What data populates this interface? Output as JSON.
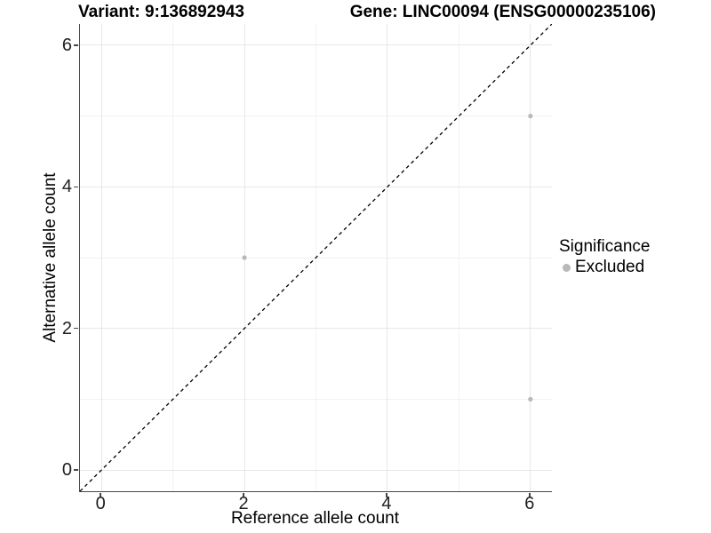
{
  "titles": {
    "left": "Variant: 9:136892943",
    "right": "Gene: LINC00094 (ENSG00000235106)"
  },
  "legend": {
    "title": "Significance",
    "items": [
      {
        "label": "Excluded",
        "color": "#b9b9b9"
      }
    ]
  },
  "colors": {
    "axis_line": "#474747",
    "grid_major": "#e7e7e7",
    "grid_minor": "#f2f2f2",
    "point": "#b9b9b9",
    "reference_line": "#000000"
  },
  "chart_data": {
    "type": "scatter",
    "title": "Variant: 9:136892943   Gene: LINC00094 (ENSG00000235106)",
    "xlabel": "Reference allele count",
    "ylabel": "Alternative allele count",
    "xlim": [
      -0.3,
      6.3
    ],
    "ylim": [
      -0.3,
      6.3
    ],
    "xticks": [
      0,
      2,
      4,
      6
    ],
    "yticks": [
      0,
      2,
      4,
      6
    ],
    "xticks_minor": [
      1,
      3,
      5
    ],
    "yticks_minor": [
      1,
      3,
      5
    ],
    "grid": "on",
    "legend_position": "right",
    "legend_title": "Significance",
    "series": [
      {
        "name": "Excluded",
        "type": "scatter",
        "color": "#b9b9b9",
        "points": [
          [
            2,
            3
          ],
          [
            6,
            5
          ],
          [
            6,
            1
          ]
        ]
      }
    ],
    "reference_line": {
      "kind": "identity",
      "from": [
        -0.3,
        -0.3
      ],
      "to": [
        6.3,
        6.3
      ],
      "style": "dashed",
      "color": "#000000"
    }
  }
}
